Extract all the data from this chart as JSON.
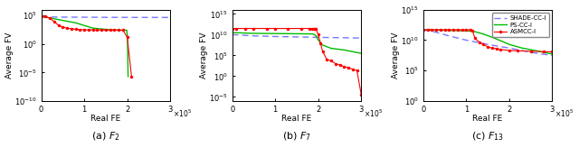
{
  "xlabel": "Real FE",
  "ylabel": "Average FV",
  "legend_labels": [
    "SHADE-CC-I",
    "PS-CC-I",
    "ASMCC-I"
  ],
  "shade_color": "#7777FF",
  "ps_color": "#00BB00",
  "asmcc_color": "#FF0000",
  "subplot_titles": [
    "(a) $F_2$",
    "(b) $F_7$",
    "(c) $F_{13}$"
  ],
  "F2_shade_x": [
    0,
    30000,
    60000,
    100000,
    150000,
    200000,
    250000,
    300000
  ],
  "F2_shade_y": [
    55000.0,
    52000.0,
    50000.0,
    48000.0,
    46000.0,
    45000.0,
    44500.0,
    44000.0
  ],
  "F2_ps_x": [
    0,
    80000,
    120000,
    160000,
    190000,
    197000,
    199000,
    200500,
    202000
  ],
  "F2_ps_y": [
    70000.0,
    5000,
    600,
    300,
    260,
    255,
    252,
    12,
    2e-06
  ],
  "F2_asmcc_x": [
    0,
    10000,
    20000,
    30000,
    40000,
    50000,
    60000,
    70000,
    80000,
    90000,
    100000,
    110000,
    120000,
    130000,
    140000,
    150000,
    160000,
    170000,
    180000,
    190000,
    200000,
    210000
  ],
  "F2_asmcc_y": [
    80000.0,
    60000.0,
    35000.0,
    8000.0,
    2000.0,
    900,
    600,
    450,
    380,
    330,
    300,
    290,
    280,
    275,
    270,
    268,
    265,
    262,
    260,
    258,
    15,
    2e-06
  ],
  "F7_shade_x": [
    0,
    50000,
    100000,
    150000,
    200000,
    250000,
    300000
  ],
  "F7_shade_y": [
    10000000000.0,
    5000000000.0,
    3500000000.0,
    2800000000.0,
    2200000000.0,
    1800000000.0,
    1500000000.0
  ],
  "F7_ps_x": [
    0,
    50000,
    100000,
    150000,
    180000,
    185000,
    190000,
    195000,
    200000,
    210000,
    230000,
    260000,
    300000
  ],
  "F7_ps_y": [
    30000000000.0,
    20000000000.0,
    18000000000.0,
    16000000000.0,
    15000000000.0,
    14500000000.0,
    12000000000.0,
    5000000000.0,
    500000000.0,
    30000000.0,
    5000000.0,
    2000000.0,
    300000.0
  ],
  "F7_asmcc_x": [
    0,
    10000,
    30000,
    50000,
    80000,
    100000,
    130000,
    160000,
    180000,
    185000,
    190000,
    192000,
    195000,
    200000,
    205000,
    210000,
    220000,
    230000,
    240000,
    250000,
    260000,
    270000,
    280000,
    290000,
    300000
  ],
  "F7_asmcc_y": [
    300000000000.0,
    300000000000.0,
    300000000000.0,
    300000000000.0,
    300000000000.0,
    300000000000.0,
    300000000000.0,
    300000000000.0,
    300000000000.0,
    300000000000.0,
    300000000000.0,
    280000000000.0,
    200000000000.0,
    10000000000.0,
    100000000.0,
    1000000.0,
    10000.0,
    5000.0,
    1000.0,
    500.0,
    200.0,
    100.0,
    50.0,
    20.0,
    3e-05
  ],
  "F13_shade_x": [
    0,
    30000,
    60000,
    100000,
    150000,
    200000,
    250000,
    300000
  ],
  "F13_shade_y": [
    500000000000.0,
    200000000000.0,
    50000000000.0,
    10000000000.0,
    2000000000.0,
    500000000.0,
    100000000.0,
    30000000.0
  ],
  "F13_ps_x": [
    0,
    30000,
    60000,
    90000,
    110000,
    120000,
    140000,
    160000,
    180000,
    200000,
    230000,
    260000,
    300000
  ],
  "F13_ps_y": [
    500000000000.0,
    450000000000.0,
    400000000000.0,
    350000000000.0,
    300000000000.0,
    250000000000.0,
    100000000000.0,
    30000000000.0,
    8000000000.0,
    2000000000.0,
    500000000.0,
    200000000.0,
    50000000.0
  ],
  "F13_asmcc_x": [
    0,
    10000,
    20000,
    30000,
    40000,
    50000,
    60000,
    70000,
    80000,
    90000,
    100000,
    110000,
    115000,
    120000,
    130000,
    140000,
    150000,
    160000,
    170000,
    180000,
    200000,
    220000,
    250000,
    280000,
    300000
  ],
  "F13_asmcc_y": [
    500000000000.0,
    500000000000.0,
    500000000000.0,
    500000000000.0,
    500000000000.0,
    500000000000.0,
    500000000000.0,
    500000000000.0,
    500000000000.0,
    500000000000.0,
    500000000000.0,
    500000000000.0,
    400000000000.0,
    20000000000.0,
    5000000000.0,
    2000000000.0,
    800000000.0,
    500000000.0,
    400000000.0,
    300000000.0,
    200000000.0,
    180000000.0,
    150000000.0,
    130000000.0,
    120000000.0
  ],
  "F2_ylim": [
    1e-10,
    1000000.0
  ],
  "F2_yticks": [
    -10,
    -5,
    0,
    5
  ],
  "F7_ylim": [
    1e-06,
    1e+16
  ],
  "F7_yticks": [
    -5,
    0,
    5,
    10,
    15
  ],
  "F13_ylim": [
    1.0,
    100000000000000.0
  ],
  "F13_yticks": [
    0,
    5,
    10,
    15
  ]
}
